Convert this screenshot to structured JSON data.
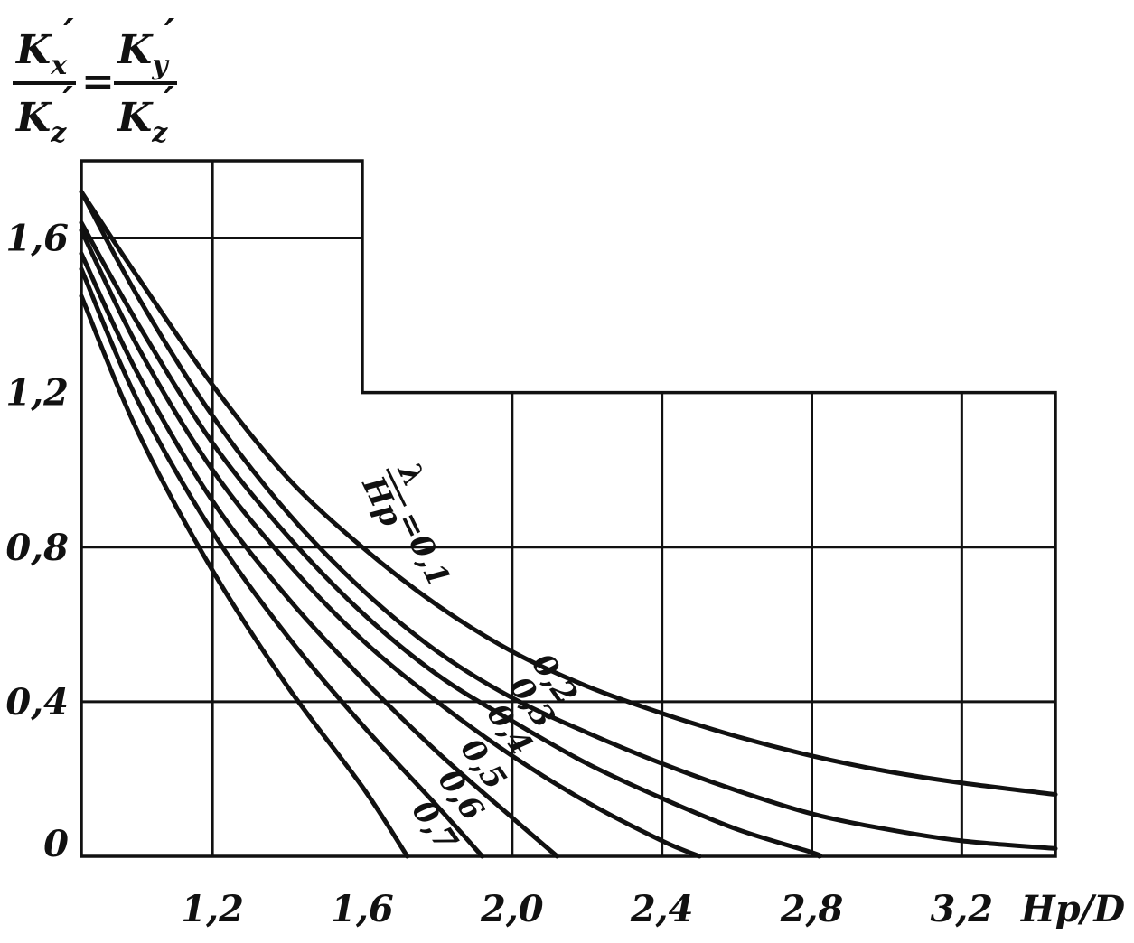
{
  "chart_data": {
    "type": "line",
    "xlabel": "Hp/D",
    "ylabel": {
      "kx": "K",
      "kx_sub": "x",
      "ky": "K",
      "ky_sub": "y",
      "kz": "K",
      "kz_sub": "z",
      "prime": "′",
      "eq": "="
    },
    "xlim": [
      0.85,
      3.45
    ],
    "ylim": [
      0,
      1.8
    ],
    "x_ticks": [
      "1,2",
      "1,6",
      "2,0",
      "2,4",
      "2,8",
      "3,2"
    ],
    "x_tick_values": [
      1.2,
      1.6,
      2.0,
      2.4,
      2.8,
      3.2
    ],
    "y_ticks": [
      "0",
      "0,4",
      "0,8",
      "1,2",
      "1,6"
    ],
    "y_tick_values": [
      0,
      0.4,
      0.8,
      1.2,
      1.6
    ],
    "legend_label": {
      "lambda": "λ",
      "hp": "Hp",
      "value": "=0,1"
    },
    "series": [
      {
        "name": "0,1",
        "x": [
          0.85,
          1.0,
          1.2,
          1.4,
          1.6,
          1.8,
          2.0,
          2.2,
          2.4,
          2.6,
          2.8,
          3.0,
          3.2,
          3.45
        ],
        "y": [
          1.72,
          1.5,
          1.22,
          0.98,
          0.8,
          0.65,
          0.53,
          0.44,
          0.37,
          0.31,
          0.26,
          0.22,
          0.19,
          0.16
        ]
      },
      {
        "name": "0,2",
        "x": [
          0.85,
          1.0,
          1.2,
          1.4,
          1.6,
          1.8,
          2.0,
          2.2,
          2.4,
          2.6,
          2.8,
          3.0,
          3.2,
          3.45
        ],
        "y": [
          1.72,
          1.45,
          1.14,
          0.89,
          0.69,
          0.53,
          0.41,
          0.32,
          0.24,
          0.17,
          0.11,
          0.07,
          0.04,
          0.02
        ]
      },
      {
        "name": "0,3",
        "x": [
          0.85,
          1.0,
          1.2,
          1.4,
          1.6,
          1.8,
          2.0,
          2.2,
          2.4,
          2.6,
          2.8,
          2.82
        ],
        "y": [
          1.64,
          1.38,
          1.07,
          0.83,
          0.63,
          0.47,
          0.35,
          0.24,
          0.15,
          0.07,
          0.01,
          0.0
        ]
      },
      {
        "name": "0,4",
        "x": [
          0.85,
          1.0,
          1.2,
          1.4,
          1.6,
          1.8,
          2.0,
          2.2,
          2.4,
          2.5
        ],
        "y": [
          1.62,
          1.32,
          1.0,
          0.76,
          0.56,
          0.4,
          0.26,
          0.14,
          0.04,
          0.0
        ]
      },
      {
        "name": "0,5",
        "x": [
          0.85,
          1.0,
          1.2,
          1.4,
          1.6,
          1.8,
          2.0,
          2.12
        ],
        "y": [
          1.56,
          1.25,
          0.92,
          0.67,
          0.46,
          0.27,
          0.1,
          0.0
        ]
      },
      {
        "name": "0,6",
        "x": [
          0.85,
          1.0,
          1.2,
          1.4,
          1.6,
          1.8,
          1.92
        ],
        "y": [
          1.52,
          1.18,
          0.84,
          0.57,
          0.34,
          0.13,
          0.0
        ]
      },
      {
        "name": "0,7",
        "x": [
          0.85,
          1.0,
          1.2,
          1.4,
          1.6,
          1.72
        ],
        "y": [
          1.45,
          1.1,
          0.74,
          0.44,
          0.18,
          0.0
        ]
      }
    ]
  }
}
